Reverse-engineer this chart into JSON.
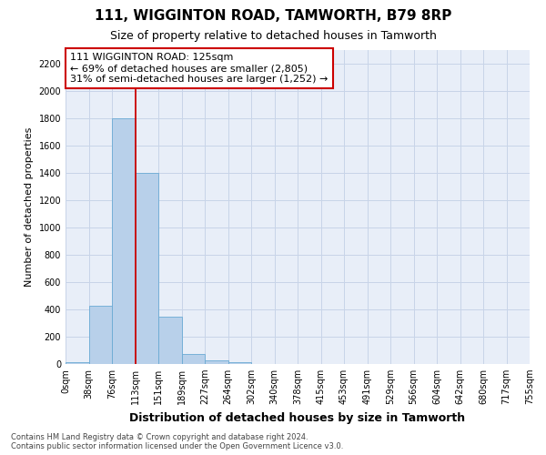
{
  "title1": "111, WIGGINTON ROAD, TAMWORTH, B79 8RP",
  "title2": "Size of property relative to detached houses in Tamworth",
  "xlabel": "Distribution of detached houses by size in Tamworth",
  "ylabel": "Number of detached properties",
  "footnote": "Contains HM Land Registry data © Crown copyright and database right 2024.\nContains public sector information licensed under the Open Government Licence v3.0.",
  "bin_labels": [
    "0sqm",
    "38sqm",
    "76sqm",
    "113sqm",
    "151sqm",
    "189sqm",
    "227sqm",
    "264sqm",
    "302sqm",
    "340sqm",
    "378sqm",
    "415sqm",
    "453sqm",
    "491sqm",
    "529sqm",
    "566sqm",
    "604sqm",
    "642sqm",
    "680sqm",
    "717sqm",
    "755sqm"
  ],
  "bar_heights": [
    15,
    430,
    1800,
    1400,
    350,
    75,
    30,
    15,
    0,
    0,
    0,
    0,
    0,
    0,
    0,
    0,
    0,
    0,
    0,
    0
  ],
  "bar_color": "#b8d0ea",
  "bar_edgecolor": "#6aaad4",
  "ylim": [
    0,
    2300
  ],
  "yticks": [
    0,
    200,
    400,
    600,
    800,
    1000,
    1200,
    1400,
    1600,
    1800,
    2000,
    2200
  ],
  "red_line_x": 3.0,
  "annotation_text": "111 WIGGINTON ROAD: 125sqm\n← 69% of detached houses are smaller (2,805)\n31% of semi-detached houses are larger (1,252) →",
  "annotation_box_color": "#ffffff",
  "annotation_box_edgecolor": "#cc0000",
  "grid_color": "#c8d4e8",
  "background_color": "#e8eef8",
  "title1_fontsize": 11,
  "title2_fontsize": 9,
  "xlabel_fontsize": 9,
  "ylabel_fontsize": 8,
  "tick_fontsize": 7,
  "annot_fontsize": 8,
  "footnote_fontsize": 6
}
